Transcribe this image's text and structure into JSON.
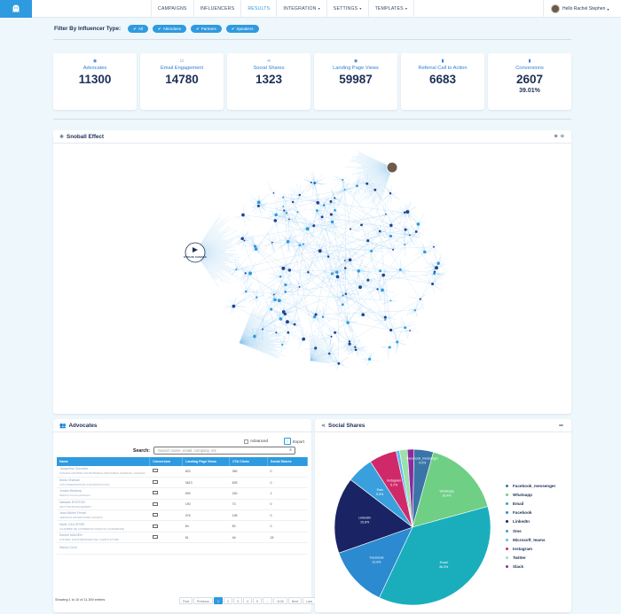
{
  "nav": {
    "items": [
      {
        "label": "CAMPAIGNS",
        "dropdown": false
      },
      {
        "label": "INFLUENCERS",
        "dropdown": false
      },
      {
        "label": "RESULTS",
        "dropdown": false,
        "active": true
      },
      {
        "label": "INTEGRATION",
        "dropdown": true
      },
      {
        "label": "SETTINGS",
        "dropdown": true
      },
      {
        "label": "TEMPLATES",
        "dropdown": true
      }
    ],
    "user": "Hello Rachel Stephen"
  },
  "filter": {
    "label": "Filter By Influencer Type:",
    "chips": [
      "All",
      "Attendees",
      "Partners",
      "Speakers"
    ]
  },
  "stats": [
    {
      "icon": "eye-icon",
      "label": "Advocates",
      "value": "11300"
    },
    {
      "icon": "inbox-icon",
      "label": "Email Engagement",
      "value": "14780"
    },
    {
      "icon": "share-icon",
      "label": "Social Shares",
      "value": "1323"
    },
    {
      "icon": "eye-icon",
      "label": "Landing Page Views",
      "value": "59987"
    },
    {
      "icon": "trash-icon",
      "label": "Referral Call to Action",
      "value": "6683"
    },
    {
      "icon": "trash-icon",
      "label": "Conversions",
      "value": "2607",
      "sub": "39.01%"
    }
  ],
  "snoball": {
    "title": "Snoball Effect",
    "badge": "EVOLVE CANADA"
  },
  "advocates": {
    "title": "Advocates",
    "advanced": "Advanced",
    "export": "Export",
    "search_label": "Search:",
    "search_placeholder": "Search name, email, company, etc",
    "columns": [
      "Name",
      "Conversion",
      "Landing Page Views",
      "CTA Clicks",
      "Social Shares"
    ],
    "rows": [
      {
        "name": "Jacqueline Gonzalez",
        "company": "CANADA CENTRE FOR BUSINESS AND PUBLIC SCIENCE / CANADA",
        "lpv": "823",
        "cta": "369",
        "ss": "0"
      },
      {
        "name": "Maria Ohanian",
        "company": "LG5 INTERNATIONAL FOUNDATION INC.",
        "lpv": "3613",
        "cta": "825",
        "ss": "0"
      },
      {
        "name": "Jordan Wardrop",
        "company": "Wardrop Communications",
        "lpv": "693",
        "cta": "240",
        "ss": "1"
      },
      {
        "name": "Nathalie ROSTON",
        "company": "MOTTTENMANAGEMENT",
        "lpv": "190",
        "cta": "73",
        "ss": "0"
      },
      {
        "name": "Jean-Michel Ferrari",
        "company": "VEEVALIS ADVERTISING CANADA",
        "lpv": "376",
        "cta": "108",
        "ss": "0"
      },
      {
        "name": "Marie CALCESSE",
        "company": "CHAMBRE DE COMMERCE FRANCO-CANADIENNE",
        "lpv": "84",
        "cta": "80",
        "ss": "0"
      },
      {
        "name": "Rachel MAIGEN",
        "company": "CONSEIL D'ENTREPRISES DE L'AGRICULTURE",
        "lpv": "81",
        "cta": "46",
        "ss": "28"
      },
      {
        "name": "Stacey Cech",
        "company": "",
        "lpv": "",
        "cta": "",
        "ss": ""
      }
    ],
    "footer": "Showing 1 to 10 of 11,300 entries",
    "pager": [
      "First",
      "Previous",
      "1",
      "2",
      "3",
      "4",
      "5",
      "...",
      "1130",
      "Next",
      "Last"
    ]
  },
  "social": {
    "title": "Social Shares",
    "legend": [
      {
        "label": "Facebook_messenger",
        "color": "#3a75a8"
      },
      {
        "label": "Whatsapp",
        "color": "#6fcf85"
      },
      {
        "label": "Email",
        "color": "#1aaebd"
      },
      {
        "label": "Facebook",
        "color": "#2b8ad0"
      },
      {
        "label": "LinkedIn",
        "color": "#1a2363"
      },
      {
        "label": "Sms",
        "color": "#3aa0dd"
      },
      {
        "label": "Microsoft_teams",
        "color": "#5fbaf0"
      },
      {
        "label": "Instagram",
        "color": "#d0296a"
      },
      {
        "label": "Twitter",
        "color": "#9ee0ad"
      },
      {
        "label": "Slack",
        "color": "#8a2b9c"
      }
    ]
  },
  "chart_data": {
    "type": "pie",
    "title": "",
    "categories": [
      "Facebook_messenger",
      "Whatsapp",
      "Email",
      "Facebook",
      "LinkedIn",
      "Sms",
      "Microsoft_teams",
      "Instagram",
      "Twitter",
      "Slack"
    ],
    "values": [
      4.0,
      16.4,
      36.3,
      12.6,
      15.8,
      5.5,
      0.7,
      5.7,
      1.6,
      1.4
    ],
    "labels": [
      {
        "name": "Facebook_messenger",
        "pct": "4.0%"
      },
      {
        "name": "Whatsapp",
        "pct": "16.4%"
      },
      {
        "name": "Email",
        "pct": "36.3%"
      },
      {
        "name": "Facebook",
        "pct": "12.6%"
      },
      {
        "name": "LinkedIn",
        "pct": "15.8%"
      },
      {
        "name": "Sms",
        "pct": "5.5%"
      },
      {
        "name": "Instagram",
        "pct": "5.7%"
      }
    ]
  }
}
